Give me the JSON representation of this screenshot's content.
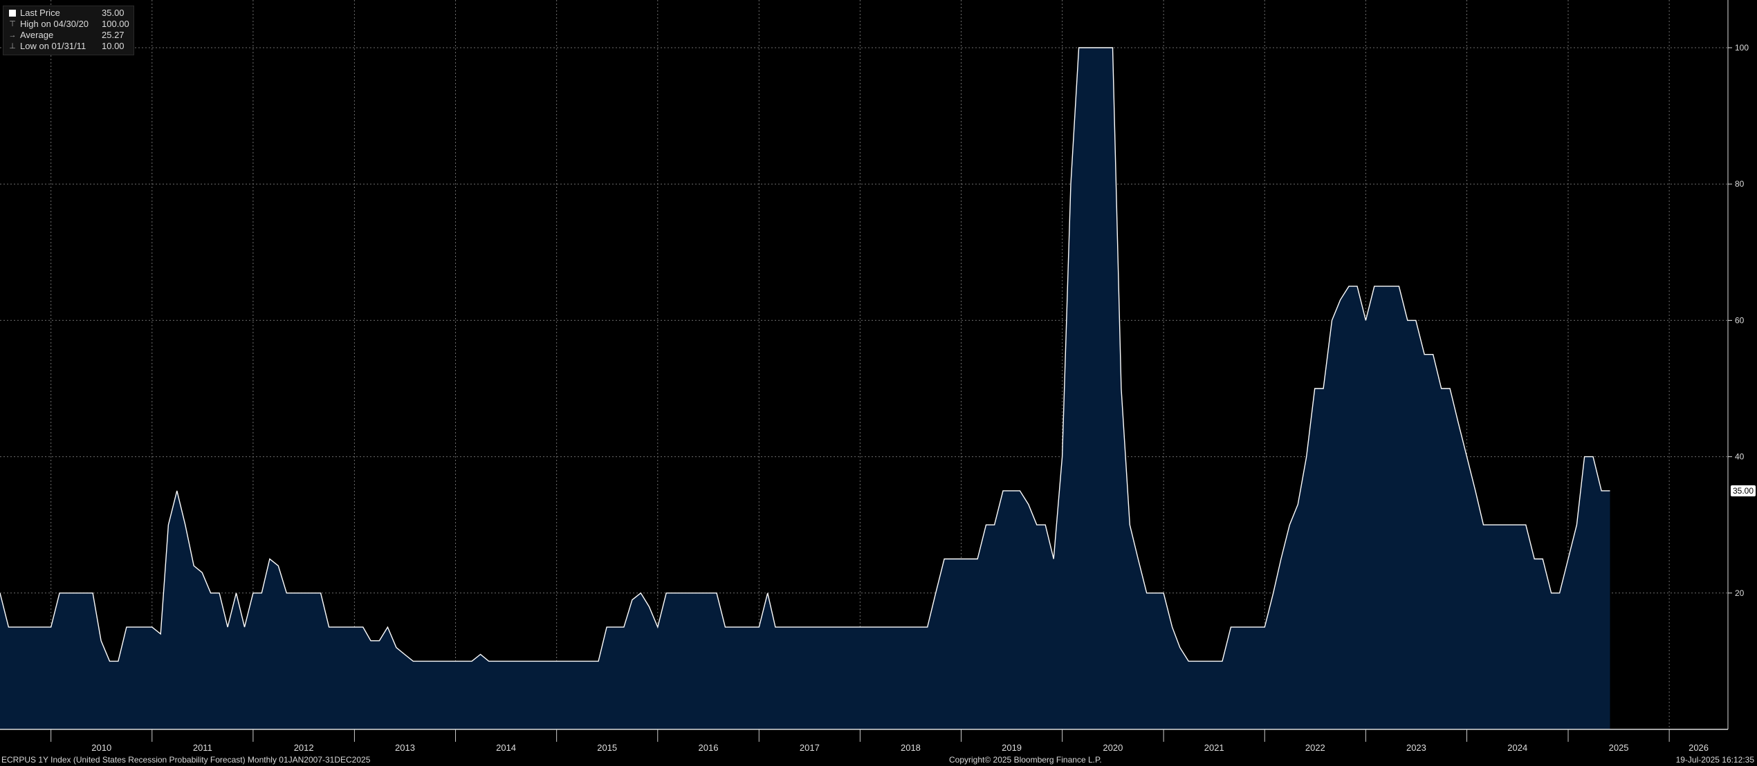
{
  "legend": {
    "items": [
      {
        "label": "Last Price",
        "value": "35.00",
        "icon": "square-swatch-icon"
      },
      {
        "label": "High on 04/30/20",
        "value": "100.00",
        "icon": "high-marker-icon"
      },
      {
        "label": "Average",
        "value": "25.27",
        "icon": "average-marker-icon"
      },
      {
        "label": "Low on 01/31/11",
        "value": "10.00",
        "icon": "low-marker-icon"
      }
    ]
  },
  "footer": {
    "left": "ECRPUS 1Y Index (United States Recession Probability Forecast)  Monthly 01JAN2007-31DEC2025",
    "center": "Copyright© 2025 Bloomberg Finance L.P.",
    "right": "19-Jul-2025 16:12:35"
  },
  "last_value_label": "35.00",
  "colors": {
    "background": "#000000",
    "area_fill": "#041c39",
    "line": "#ffffff",
    "grid": "#6e6e6e"
  },
  "chart_data": {
    "type": "area",
    "x_axis": {
      "type": "date",
      "range": [
        "2009-07-01",
        "2026-08-01"
      ],
      "tick_labels": [
        "2010",
        "2011",
        "2012",
        "2013",
        "2014",
        "2015",
        "2016",
        "2017",
        "2018",
        "2019",
        "2020",
        "2021",
        "2022",
        "2023",
        "2024",
        "2025",
        "2026"
      ]
    },
    "y_axis": {
      "range": [
        0,
        107
      ],
      "ticks": [
        20,
        40,
        60,
        80,
        100
      ],
      "position": "right"
    },
    "grid": true,
    "legend_position": "top-left",
    "series": [
      {
        "name": "Last Price",
        "points": [
          [
            "2009-07-01",
            20
          ],
          [
            "2009-08-01",
            15
          ],
          [
            "2009-09-01",
            15
          ],
          [
            "2009-10-01",
            15
          ],
          [
            "2009-11-01",
            15
          ],
          [
            "2009-12-01",
            15
          ],
          [
            "2010-01-01",
            15
          ],
          [
            "2010-02-01",
            20
          ],
          [
            "2010-03-01",
            20
          ],
          [
            "2010-04-01",
            20
          ],
          [
            "2010-05-01",
            20
          ],
          [
            "2010-06-01",
            20
          ],
          [
            "2010-07-01",
            13
          ],
          [
            "2010-08-01",
            10
          ],
          [
            "2010-09-01",
            10
          ],
          [
            "2010-10-01",
            15
          ],
          [
            "2010-11-01",
            15
          ],
          [
            "2010-12-01",
            15
          ],
          [
            "2011-01-01",
            15
          ],
          [
            "2011-02-01",
            14
          ],
          [
            "2011-03-01",
            30
          ],
          [
            "2011-04-01",
            35
          ],
          [
            "2011-05-01",
            30
          ],
          [
            "2011-06-01",
            24
          ],
          [
            "2011-07-01",
            23
          ],
          [
            "2011-08-01",
            20
          ],
          [
            "2011-09-01",
            20
          ],
          [
            "2011-10-01",
            15
          ],
          [
            "2011-11-01",
            20
          ],
          [
            "2011-12-01",
            15
          ],
          [
            "2012-01-01",
            20
          ],
          [
            "2012-02-01",
            20
          ],
          [
            "2012-03-01",
            25
          ],
          [
            "2012-04-01",
            24
          ],
          [
            "2012-05-01",
            20
          ],
          [
            "2012-06-01",
            20
          ],
          [
            "2012-07-01",
            20
          ],
          [
            "2012-08-01",
            20
          ],
          [
            "2012-09-01",
            20
          ],
          [
            "2012-10-01",
            15
          ],
          [
            "2012-11-01",
            15
          ],
          [
            "2012-12-01",
            15
          ],
          [
            "2013-01-01",
            15
          ],
          [
            "2013-02-01",
            15
          ],
          [
            "2013-03-01",
            13
          ],
          [
            "2013-04-01",
            13
          ],
          [
            "2013-05-01",
            15
          ],
          [
            "2013-06-01",
            12
          ],
          [
            "2013-07-01",
            11
          ],
          [
            "2013-08-01",
            10
          ],
          [
            "2013-09-01",
            10
          ],
          [
            "2013-10-01",
            10
          ],
          [
            "2013-11-01",
            10
          ],
          [
            "2013-12-01",
            10
          ],
          [
            "2014-01-01",
            10
          ],
          [
            "2014-02-01",
            10
          ],
          [
            "2014-03-01",
            10
          ],
          [
            "2014-04-01",
            11
          ],
          [
            "2014-05-01",
            10
          ],
          [
            "2014-06-01",
            10
          ],
          [
            "2014-07-01",
            10
          ],
          [
            "2014-08-01",
            10
          ],
          [
            "2014-09-01",
            10
          ],
          [
            "2014-10-01",
            10
          ],
          [
            "2014-11-01",
            10
          ],
          [
            "2014-12-01",
            10
          ],
          [
            "2015-01-01",
            10
          ],
          [
            "2015-02-01",
            10
          ],
          [
            "2015-03-01",
            10
          ],
          [
            "2015-04-01",
            10
          ],
          [
            "2015-05-01",
            10
          ],
          [
            "2015-06-01",
            10
          ],
          [
            "2015-07-01",
            15
          ],
          [
            "2015-08-01",
            15
          ],
          [
            "2015-09-01",
            15
          ],
          [
            "2015-10-01",
            19
          ],
          [
            "2015-11-01",
            20
          ],
          [
            "2015-12-01",
            18
          ],
          [
            "2016-01-01",
            15
          ],
          [
            "2016-02-01",
            20
          ],
          [
            "2016-03-01",
            20
          ],
          [
            "2016-04-01",
            20
          ],
          [
            "2016-05-01",
            20
          ],
          [
            "2016-06-01",
            20
          ],
          [
            "2016-07-01",
            20
          ],
          [
            "2016-08-01",
            20
          ],
          [
            "2016-09-01",
            15
          ],
          [
            "2016-10-01",
            15
          ],
          [
            "2016-11-01",
            15
          ],
          [
            "2016-12-01",
            15
          ],
          [
            "2017-01-01",
            15
          ],
          [
            "2017-02-01",
            20
          ],
          [
            "2017-03-01",
            15
          ],
          [
            "2017-04-01",
            15
          ],
          [
            "2017-05-01",
            15
          ],
          [
            "2017-06-01",
            15
          ],
          [
            "2017-07-01",
            15
          ],
          [
            "2017-08-01",
            15
          ],
          [
            "2017-09-01",
            15
          ],
          [
            "2017-10-01",
            15
          ],
          [
            "2017-11-01",
            15
          ],
          [
            "2017-12-01",
            15
          ],
          [
            "2018-01-01",
            15
          ],
          [
            "2018-02-01",
            15
          ],
          [
            "2018-03-01",
            15
          ],
          [
            "2018-04-01",
            15
          ],
          [
            "2018-05-01",
            15
          ],
          [
            "2018-06-01",
            15
          ],
          [
            "2018-07-01",
            15
          ],
          [
            "2018-08-01",
            15
          ],
          [
            "2018-09-01",
            15
          ],
          [
            "2018-10-01",
            20
          ],
          [
            "2018-11-01",
            25
          ],
          [
            "2018-12-01",
            25
          ],
          [
            "2019-01-01",
            25
          ],
          [
            "2019-02-01",
            25
          ],
          [
            "2019-03-01",
            25
          ],
          [
            "2019-04-01",
            30
          ],
          [
            "2019-05-01",
            30
          ],
          [
            "2019-06-01",
            35
          ],
          [
            "2019-07-01",
            35
          ],
          [
            "2019-08-01",
            35
          ],
          [
            "2019-09-01",
            33
          ],
          [
            "2019-10-01",
            30
          ],
          [
            "2019-11-01",
            30
          ],
          [
            "2019-12-01",
            25
          ],
          [
            "2020-01-01",
            40
          ],
          [
            "2020-02-01",
            80
          ],
          [
            "2020-03-01",
            100
          ],
          [
            "2020-04-01",
            100
          ],
          [
            "2020-05-01",
            100
          ],
          [
            "2020-06-01",
            100
          ],
          [
            "2020-07-01",
            100
          ],
          [
            "2020-08-01",
            50
          ],
          [
            "2020-09-01",
            30
          ],
          [
            "2020-10-01",
            25
          ],
          [
            "2020-11-01",
            20
          ],
          [
            "2020-12-01",
            20
          ],
          [
            "2021-01-01",
            20
          ],
          [
            "2021-02-01",
            15
          ],
          [
            "2021-03-01",
            12
          ],
          [
            "2021-04-01",
            10
          ],
          [
            "2021-05-01",
            10
          ],
          [
            "2021-06-01",
            10
          ],
          [
            "2021-07-01",
            10
          ],
          [
            "2021-08-01",
            10
          ],
          [
            "2021-09-01",
            15
          ],
          [
            "2021-10-01",
            15
          ],
          [
            "2021-11-01",
            15
          ],
          [
            "2021-12-01",
            15
          ],
          [
            "2022-01-01",
            15
          ],
          [
            "2022-02-01",
            20
          ],
          [
            "2022-03-01",
            25
          ],
          [
            "2022-04-01",
            30
          ],
          [
            "2022-05-01",
            33
          ],
          [
            "2022-06-01",
            40
          ],
          [
            "2022-07-01",
            50
          ],
          [
            "2022-08-01",
            50
          ],
          [
            "2022-09-01",
            60
          ],
          [
            "2022-10-01",
            63
          ],
          [
            "2022-11-01",
            65
          ],
          [
            "2022-12-01",
            65
          ],
          [
            "2023-01-01",
            60
          ],
          [
            "2023-02-01",
            65
          ],
          [
            "2023-03-01",
            65
          ],
          [
            "2023-04-01",
            65
          ],
          [
            "2023-05-01",
            65
          ],
          [
            "2023-06-01",
            60
          ],
          [
            "2023-07-01",
            60
          ],
          [
            "2023-08-01",
            55
          ],
          [
            "2023-09-01",
            55
          ],
          [
            "2023-10-01",
            50
          ],
          [
            "2023-11-01",
            50
          ],
          [
            "2023-12-01",
            45
          ],
          [
            "2024-01-01",
            40
          ],
          [
            "2024-02-01",
            35
          ],
          [
            "2024-03-01",
            30
          ],
          [
            "2024-04-01",
            30
          ],
          [
            "2024-05-01",
            30
          ],
          [
            "2024-06-01",
            30
          ],
          [
            "2024-07-01",
            30
          ],
          [
            "2024-08-01",
            30
          ],
          [
            "2024-09-01",
            25
          ],
          [
            "2024-10-01",
            25
          ],
          [
            "2024-11-01",
            20
          ],
          [
            "2024-12-01",
            20
          ],
          [
            "2025-01-01",
            25
          ],
          [
            "2025-02-01",
            30
          ],
          [
            "2025-03-01",
            40
          ],
          [
            "2025-04-01",
            40
          ],
          [
            "2025-05-01",
            35
          ],
          [
            "2025-06-01",
            35
          ]
        ]
      }
    ]
  }
}
